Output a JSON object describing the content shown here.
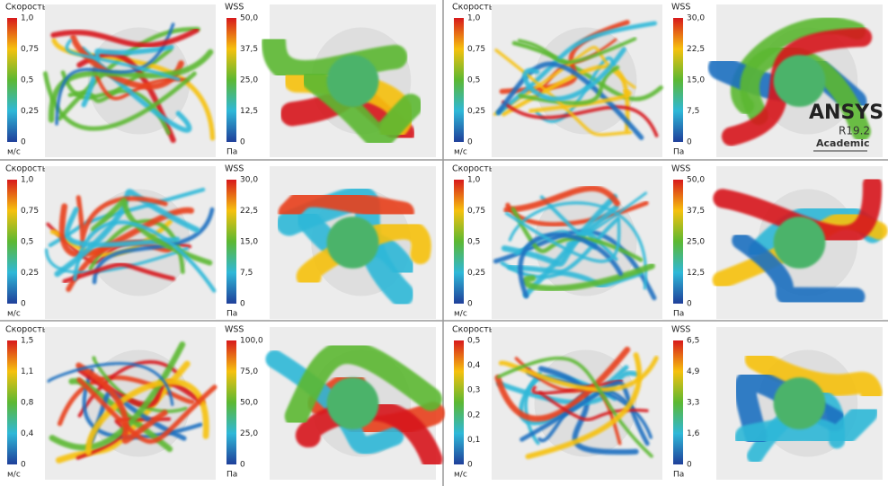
{
  "panels": [
    {
      "velocity": {
        "title": "Скорость",
        "ticks": [
          "1,0",
          "0,75",
          "0,5",
          "0,25",
          "0"
        ],
        "unit": "м/с"
      },
      "wss": {
        "title": "WSS",
        "ticks": [
          "50,0",
          "37,5",
          "25,0",
          "12,5",
          "0"
        ],
        "unit": "Па"
      }
    },
    {
      "velocity": {
        "title": "Скорость",
        "ticks": [
          "1,0",
          "0,75",
          "0,5",
          "0,25",
          "0"
        ],
        "unit": "м/с"
      },
      "wss": {
        "title": "WSS",
        "ticks": [
          "30,0",
          "22,5",
          "15,0",
          "7,5",
          "0"
        ],
        "unit": "Па"
      }
    },
    {
      "velocity": {
        "title": "Скорость",
        "ticks": [
          "1,0",
          "0,75",
          "0,5",
          "0,25",
          "0"
        ],
        "unit": "м/с"
      },
      "wss": {
        "title": "WSS",
        "ticks": [
          "30,0",
          "22,5",
          "15,0",
          "7,5",
          "0"
        ],
        "unit": "Па"
      }
    },
    {
      "velocity": {
        "title": "Скорость",
        "ticks": [
          "1,0",
          "0,75",
          "0,5",
          "0,25",
          "0"
        ],
        "unit": "м/с"
      },
      "wss": {
        "title": "WSS",
        "ticks": [
          "50,0",
          "37,5",
          "25,0",
          "12,5",
          "0"
        ],
        "unit": "Па"
      }
    },
    {
      "velocity": {
        "title": "Скорость",
        "ticks": [
          "1,5",
          "1,1",
          "0,8",
          "0,4",
          "0"
        ],
        "unit": "м/с"
      },
      "wss": {
        "title": "WSS",
        "ticks": [
          "100,0",
          "75,0",
          "50,0",
          "25,0",
          "0"
        ],
        "unit": "Па"
      }
    },
    {
      "velocity": {
        "title": "Скорость",
        "ticks": [
          "0,5",
          "0,4",
          "0,3",
          "0,2",
          "0,1",
          "0"
        ],
        "unit": "м/с"
      },
      "wss": {
        "title": "WSS",
        "ticks": [
          "6,5",
          "4,9",
          "3,3",
          "1,6",
          "0"
        ],
        "unit": "Па"
      }
    }
  ],
  "watermark": {
    "name": "ANSYS",
    "version": "R19.2",
    "edition": "Academic"
  }
}
